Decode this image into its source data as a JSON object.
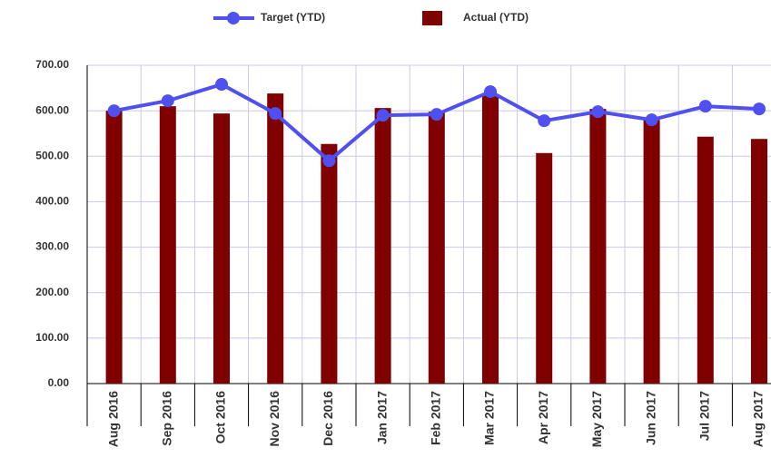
{
  "chart_data": {
    "type": "bar-line",
    "categories": [
      "Aug 2016",
      "Sep 2016",
      "Oct 2016",
      "Nov 2016",
      "Dec 2016",
      "Jan 2017",
      "Feb 2017",
      "Mar 2017",
      "Apr 2017",
      "May 2017",
      "Jun 2017",
      "Jul 2017",
      "Aug 2017"
    ],
    "series": [
      {
        "name": "Target (YTD)",
        "type": "line",
        "color": "#5050f0",
        "values": [
          600,
          622,
          658,
          594,
          490,
          590,
          592,
          642,
          578,
          598,
          580,
          610,
          604
        ]
      },
      {
        "name": "Actual (YTD)",
        "type": "bar",
        "color": "#800000",
        "values": [
          600,
          610,
          594,
          638,
          527,
          606,
          598,
          636,
          507,
          604,
          580,
          543,
          538
        ]
      }
    ],
    "ylim": [
      0,
      700
    ],
    "yticks": [
      {
        "value": 0,
        "label": "0.00"
      },
      {
        "value": 100,
        "label": "100.00"
      },
      {
        "value": 200,
        "label": "200.00"
      },
      {
        "value": 300,
        "label": "300.00"
      },
      {
        "value": 400,
        "label": "400.00"
      },
      {
        "value": 500,
        "label": "500.00"
      },
      {
        "value": 600,
        "label": "600.00"
      },
      {
        "value": 700,
        "label": "700.00"
      }
    ],
    "grid": true,
    "legend": "top"
  }
}
